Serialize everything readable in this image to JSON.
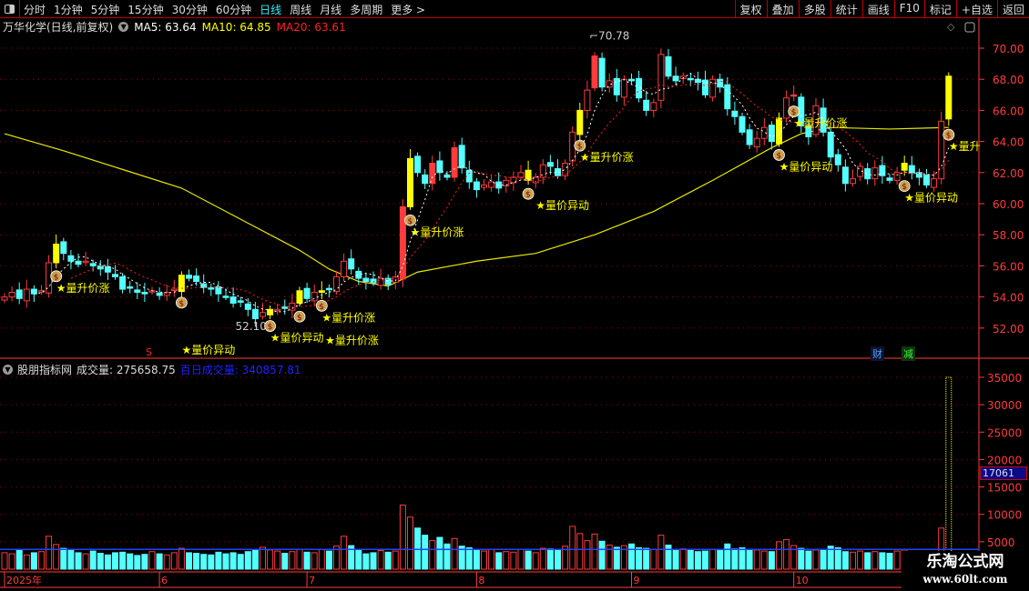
{
  "topbar": {
    "periods": [
      "分时",
      "1分钟",
      "5分钟",
      "15分钟",
      "30分钟",
      "60分钟",
      "日线",
      "周线",
      "月线",
      "多周期",
      "更多 >"
    ],
    "active_period": "日线",
    "buttons": [
      "复权",
      "叠加",
      "多股",
      "统计",
      "画线",
      "F10",
      "标记",
      "+自选",
      "返回"
    ]
  },
  "info": {
    "title": "万华化学(日线,前复权)",
    "ma5": "MA5: 63.64",
    "ma10": "MA10: 64.85",
    "ma20": "MA20: 63.61"
  },
  "indicator": {
    "name": "股朋指标网",
    "volume": "成交量: 275658.75",
    "avg_volume": "百日成交量: 340857.81"
  },
  "badges": {
    "cai": "财",
    "jian": "减",
    "s_marker": "S"
  },
  "cursor_value": "17061",
  "watermark": {
    "name": "乐淘公式网",
    "url": "www.60lt.com"
  },
  "colors": {
    "up": "#ff3b3b",
    "down": "#54ffff",
    "signal": "#ffff00",
    "ma5": "#ffffff",
    "ma10": "#ff2020",
    "ma_long": "#e8e800",
    "vol_ma": "#2244ff",
    "axis": "#ff3b3b"
  },
  "chart_data": {
    "type": "candlestick",
    "price_axis": {
      "min": 51,
      "max": 71,
      "ticks": [
        "70.00",
        "68.00",
        "66.00",
        "64.00",
        "62.00",
        "60.00",
        "58.00",
        "56.00",
        "54.00",
        "52.00"
      ]
    },
    "volume_axis": {
      "ticks": [
        "35000",
        "30000",
        "25000",
        "20000",
        "15000",
        "10000",
        "5000"
      ]
    },
    "date_labels": [
      {
        "i": 0,
        "t": "2025年"
      },
      {
        "i": 21,
        "t": "6"
      },
      {
        "i": 41,
        "t": "7"
      },
      {
        "i": 64,
        "t": "8"
      },
      {
        "i": 85,
        "t": "9"
      },
      {
        "i": 107,
        "t": "10"
      }
    ],
    "high_label": {
      "i": 80,
      "t": "70.78",
      "v": 70.78
    },
    "low_label": {
      "i": 35,
      "t": "52.10",
      "v": 52.1
    },
    "close": [
      54.0,
      54.3,
      53.9,
      54.5,
      54.2,
      54.4,
      56.2,
      57.4,
      56.8,
      56.3,
      56.1,
      56.3,
      56.0,
      55.8,
      55.6,
      55.3,
      54.5,
      54.6,
      54.3,
      54.2,
      54.4,
      54.1,
      54.3,
      54.5,
      55.4,
      55.2,
      55.0,
      54.6,
      54.5,
      54.2,
      54.0,
      53.6,
      53.7,
      53.2,
      52.6,
      53.0,
      53.2,
      53.2,
      53.3,
      53.6,
      54.4,
      53.9,
      54.3,
      54.4,
      54.5,
      55.3,
      56.3,
      55.8,
      55.2,
      55.0,
      54.9,
      55.2,
      54.8,
      55.3,
      59.8,
      62.9,
      62.0,
      61.3,
      62.6,
      62.0,
      61.7,
      63.6,
      62.3,
      61.4,
      60.9,
      61.2,
      61.4,
      61.0,
      61.5,
      61.7,
      62.0,
      61.5,
      61.7,
      62.5,
      62.4,
      61.8,
      62.6,
      64.6,
      66.0,
      67.3,
      69.5,
      67.5,
      67.9,
      67.0,
      68.0,
      67.9,
      66.8,
      66.0,
      66.5,
      69.6,
      68.2,
      67.9,
      68.2,
      68.0,
      67.8,
      67.0,
      68.0,
      67.5,
      66.1,
      65.6,
      64.6,
      63.8,
      64.2,
      64.9,
      64.0,
      65.5,
      66.8,
      67.0,
      65.0,
      64.3,
      66.3,
      64.6,
      63.0,
      62.5,
      61.3,
      61.6,
      62.4,
      61.6,
      62.3,
      61.8,
      61.5,
      62.0,
      62.6,
      62.0,
      61.7,
      61.2,
      61.6,
      65.3,
      68.2
    ],
    "signal_bars": [
      7,
      24,
      36,
      40,
      43,
      55,
      71,
      78,
      105,
      122,
      128
    ],
    "solid_up_bars": [
      8,
      54,
      57,
      58,
      61,
      80,
      107
    ],
    "ma_long": {
      "index": [
        0,
        8,
        16,
        24,
        32,
        40,
        44,
        48,
        52,
        56,
        64,
        72,
        80,
        88,
        96,
        104,
        108,
        112,
        120,
        128
      ],
      "values": [
        64.5,
        63.4,
        62.2,
        61.0,
        59.0,
        57.0,
        55.8,
        55.0,
        54.7,
        55.6,
        56.3,
        56.8,
        58.0,
        59.5,
        61.5,
        63.6,
        64.5,
        64.9,
        64.8,
        64.9
      ]
    },
    "volume": [
      3000,
      2800,
      3400,
      2600,
      3000,
      3200,
      6000,
      4500,
      3800,
      3600,
      3000,
      2800,
      3300,
      2900,
      2600,
      3000,
      3100,
      2800,
      2500,
      2700,
      3200,
      2800,
      2600,
      3000,
      3800,
      3000,
      2900,
      2700,
      2600,
      3100,
      2800,
      3000,
      2700,
      3200,
      3600,
      4000,
      3500,
      3300,
      2900,
      3200,
      3600,
      3100,
      3000,
      3600,
      3300,
      4200,
      6000,
      4300,
      3600,
      2800,
      3000,
      3400,
      3100,
      3300,
      11700,
      9500,
      7500,
      6200,
      5200,
      5800,
      4600,
      5600,
      4200,
      3900,
      3400,
      3300,
      3600,
      3000,
      3200,
      3100,
      3600,
      3300,
      3000,
      3800,
      3700,
      3400,
      4200,
      7800,
      6500,
      5200,
      6400,
      5100,
      4400,
      4000,
      4300,
      4600,
      3900,
      3800,
      3600,
      6200,
      4400,
      3600,
      3700,
      3400,
      3200,
      3300,
      3600,
      3500,
      4600,
      3700,
      3900,
      3600,
      3500,
      3300,
      3200,
      5000,
      5400,
      4300,
      3800,
      3300,
      3500,
      3400,
      4200,
      3900,
      3200,
      3100,
      3300,
      3000,
      3200,
      3000,
      2900,
      3300,
      3500,
      3100,
      2900,
      3200,
      3000,
      7500,
      35000
    ],
    "volume_ma": 3600,
    "annotations": [
      {
        "i": 8,
        "t": "★量升价涨",
        "bag": 7
      },
      {
        "i": 25,
        "t": "★量价异动",
        "bag": 24
      },
      {
        "i": 37,
        "t": "★量价异动",
        "bag": 36
      },
      {
        "i": 41,
        "t": "★量升价涨",
        "bag": 40
      },
      {
        "i": 44,
        "t": "★量升价涨",
        "bag": 43
      },
      {
        "i": 56,
        "t": "★量升价涨",
        "bag": 55
      },
      {
        "i": 73,
        "t": "★量价异动",
        "bag": 71
      },
      {
        "i": 79,
        "t": "★量升价涨",
        "bag": 78
      },
      {
        "i": 106,
        "t": "★量价异动",
        "bag": 105
      },
      {
        "i": 108,
        "t": "★量升价涨",
        "bag": 107
      },
      {
        "i": 123,
        "t": "★量价异动",
        "bag": 122
      },
      {
        "i": 129,
        "t": "★量升",
        "bag": 128
      }
    ]
  }
}
